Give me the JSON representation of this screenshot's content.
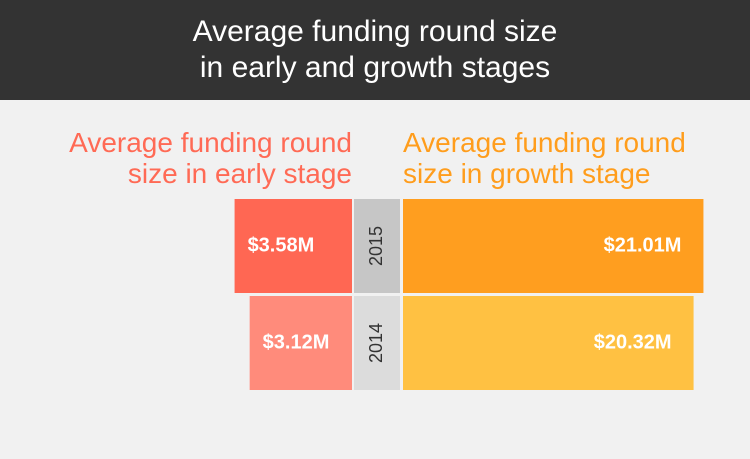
{
  "chart_data": {
    "type": "butterfly-bar",
    "title": "Average funding round size\nin early and growth stages",
    "categories": [
      "2015",
      "2014"
    ],
    "series": [
      {
        "name": "Average funding round\nsize in early stage",
        "colors": [
          "#ff6753",
          "#ff8b7b"
        ],
        "values": [
          3.58,
          3.12
        ],
        "value_labels": [
          "$3.58M",
          "$3.12M"
        ]
      },
      {
        "name": "Average funding round\nsize in growth stage",
        "colors": [
          "#ff9e1f",
          "#ffc142"
        ],
        "values": [
          21.01,
          20.32
        ],
        "value_labels": [
          "$21.01M",
          "$20.32M"
        ]
      }
    ]
  }
}
